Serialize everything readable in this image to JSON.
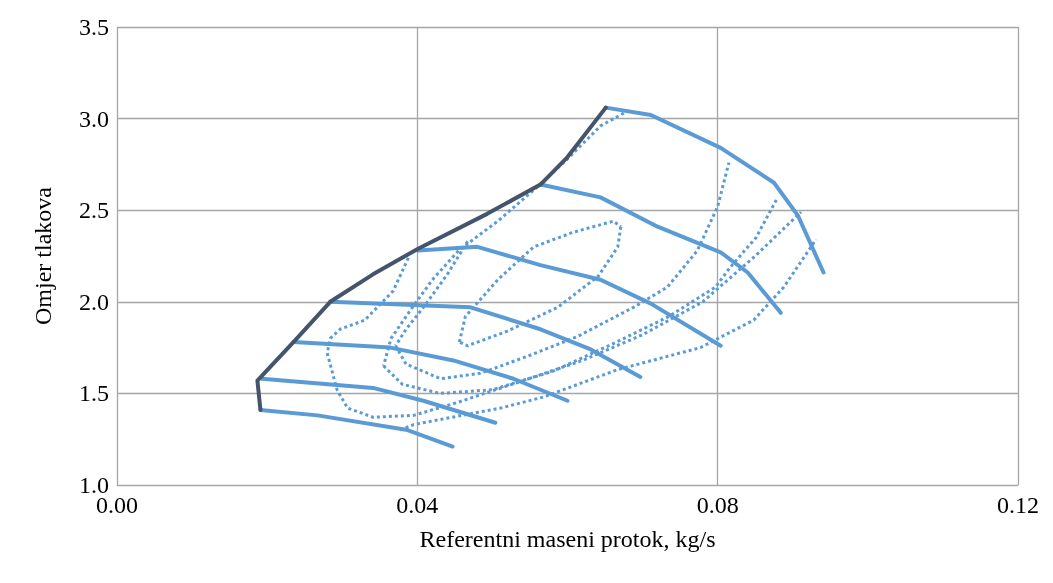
{
  "chart_data": {
    "type": "line",
    "xlabel": "Referentni maseni protok, kg/s",
    "ylabel": "Omjer tlakova",
    "xlim": [
      0,
      0.12
    ],
    "xticks": [
      {
        "value": 0,
        "label": "0.00"
      },
      {
        "value": 0.04,
        "label": "0.04"
      },
      {
        "value": 0.08,
        "label": "0.08"
      },
      {
        "value": 0.12,
        "label": "0.12"
      }
    ],
    "ylim": [
      1,
      3.5
    ],
    "yticks": [
      {
        "value": 1,
        "label": "1.0"
      },
      {
        "value": 1.5,
        "label": "1.5"
      },
      {
        "value": 2,
        "label": "2.0"
      },
      {
        "value": 2.5,
        "label": "2.5"
      },
      {
        "value": 3,
        "label": "3.0"
      },
      {
        "value": 3.5,
        "label": "3.5"
      }
    ],
    "grid": true,
    "marker": "none",
    "series": [
      {
        "color": "#5b9bd5",
        "line_style": "dotted",
        "x": [
          0.0456,
          0.0464,
          0.0507,
          0.0555,
          0.0608,
          0.0661,
          0.0671
        ],
        "values": [
          1.78,
          1.92,
          2.12,
          2.3,
          2.38,
          2.44,
          2.41
        ]
      },
      {
        "color": "#5b9bd5",
        "line_style": "dotted",
        "x": [
          0.0671,
          0.0667,
          0.0641,
          0.0587,
          0.052,
          0.0467,
          0.0456
        ],
        "values": [
          2.41,
          2.3,
          2.14,
          1.97,
          1.84,
          1.76,
          1.78
        ]
      },
      {
        "color": "#5b9bd5",
        "line_style": "dotted",
        "x": [
          0.0467,
          0.044,
          0.041,
          0.0385,
          0.0371
        ],
        "values": [
          2.33,
          2.15,
          1.98,
          1.85,
          1.76
        ]
      },
      {
        "color": "#5b9bd5",
        "line_style": "dotted",
        "x": [
          0.0371,
          0.0385,
          0.0431,
          0.0484,
          0.0545,
          0.0613,
          0.0688,
          0.0733,
          0.0773,
          0.08,
          0.0815
        ],
        "values": [
          1.76,
          1.66,
          1.58,
          1.61,
          1.7,
          1.81,
          1.97,
          2.08,
          2.28,
          2.52,
          2.76
        ]
      },
      {
        "color": "#5b9bd5",
        "line_style": "dotted",
        "x": [
          0.0675,
          0.0644,
          0.06,
          0.0555,
          0.0507,
          0.0455,
          0.042,
          0.039,
          0.0365,
          0.0355
        ],
        "values": [
          3.03,
          2.96,
          2.78,
          2.61,
          2.44,
          2.28,
          2.12,
          1.95,
          1.8,
          1.65
        ]
      },
      {
        "color": "#5b9bd5",
        "line_style": "dotted",
        "x": [
          0.0355,
          0.038,
          0.043,
          0.05,
          0.058,
          0.0665,
          0.0735,
          0.0797,
          0.0817,
          0.0851,
          0.088
        ],
        "values": [
          1.65,
          1.55,
          1.5,
          1.52,
          1.62,
          1.78,
          1.92,
          2.08,
          2.19,
          2.35,
          2.57
        ]
      },
      {
        "color": "#5b9bd5",
        "line_style": "dotted",
        "x": [
          0.0388,
          0.0368,
          0.033,
          0.0297,
          0.0284,
          0.028
        ],
        "values": [
          2.24,
          2.06,
          1.9,
          1.85,
          1.8,
          1.72
        ]
      },
      {
        "color": "#5b9bd5",
        "line_style": "dotted",
        "x": [
          0.028,
          0.0293,
          0.0307,
          0.0341,
          0.0395,
          0.0453,
          0.0541,
          0.062,
          0.07,
          0.078,
          0.085,
          0.0911
        ],
        "values": [
          1.72,
          1.52,
          1.42,
          1.37,
          1.38,
          1.45,
          1.57,
          1.68,
          1.82,
          2.0,
          2.25,
          2.49
        ]
      },
      {
        "color": "#5b9bd5",
        "line_style": "dotted",
        "x": [
          0.0377,
          0.0395,
          0.0511,
          0.0568,
          0.0667,
          0.0777,
          0.0848,
          0.0888,
          0.0931
        ],
        "values": [
          1.3,
          1.33,
          1.42,
          1.48,
          1.63,
          1.75,
          1.9,
          2.08,
          2.34
        ]
      },
      {
        "color": "#5b9bd5",
        "line_style": "solid",
        "x": [
          0.0651,
          0.0711,
          0.0804,
          0.0875,
          0.0907,
          0.0941
        ],
        "values": [
          3.06,
          3.02,
          2.84,
          2.65,
          2.47,
          2.16
        ]
      },
      {
        "color": "#5b9bd5",
        "line_style": "solid",
        "x": [
          0.0564,
          0.0644,
          0.072,
          0.0804,
          0.084,
          0.0884
        ],
        "values": [
          2.64,
          2.57,
          2.41,
          2.27,
          2.16,
          1.94
        ]
      },
      {
        "color": "#5b9bd5",
        "line_style": "solid",
        "x": [
          0.0401,
          0.048,
          0.0564,
          0.0644,
          0.0711,
          0.0804
        ],
        "values": [
          2.28,
          2.3,
          2.2,
          2.12,
          1.99,
          1.76
        ]
      },
      {
        "color": "#5b9bd5",
        "line_style": "solid",
        "x": [
          0.0284,
          0.0471,
          0.0564,
          0.0631,
          0.0697
        ],
        "values": [
          2.0,
          1.97,
          1.85,
          1.74,
          1.59
        ]
      },
      {
        "color": "#5b9bd5",
        "line_style": "solid",
        "x": [
          0.0235,
          0.0364,
          0.0448,
          0.0528,
          0.06
        ],
        "values": [
          1.78,
          1.75,
          1.68,
          1.58,
          1.46
        ]
      },
      {
        "color": "#5b9bd5",
        "line_style": "solid",
        "x": [
          0.0193,
          0.0341,
          0.0408,
          0.0504
        ],
        "values": [
          1.58,
          1.53,
          1.46,
          1.34
        ]
      },
      {
        "color": "#5b9bd5",
        "line_style": "solid",
        "x": [
          0.0191,
          0.0267,
          0.0387,
          0.0447
        ],
        "values": [
          1.41,
          1.38,
          1.3,
          1.21
        ]
      },
      {
        "color": "#44546a",
        "line_style": "solid",
        "x": [
          0.0191,
          0.0187,
          0.0235,
          0.0284,
          0.0341,
          0.0401,
          0.0493,
          0.0564,
          0.06,
          0.0651
        ],
        "values": [
          1.41,
          1.57,
          1.78,
          2.0,
          2.15,
          2.29,
          2.48,
          2.64,
          2.79,
          3.06
        ]
      }
    ]
  }
}
